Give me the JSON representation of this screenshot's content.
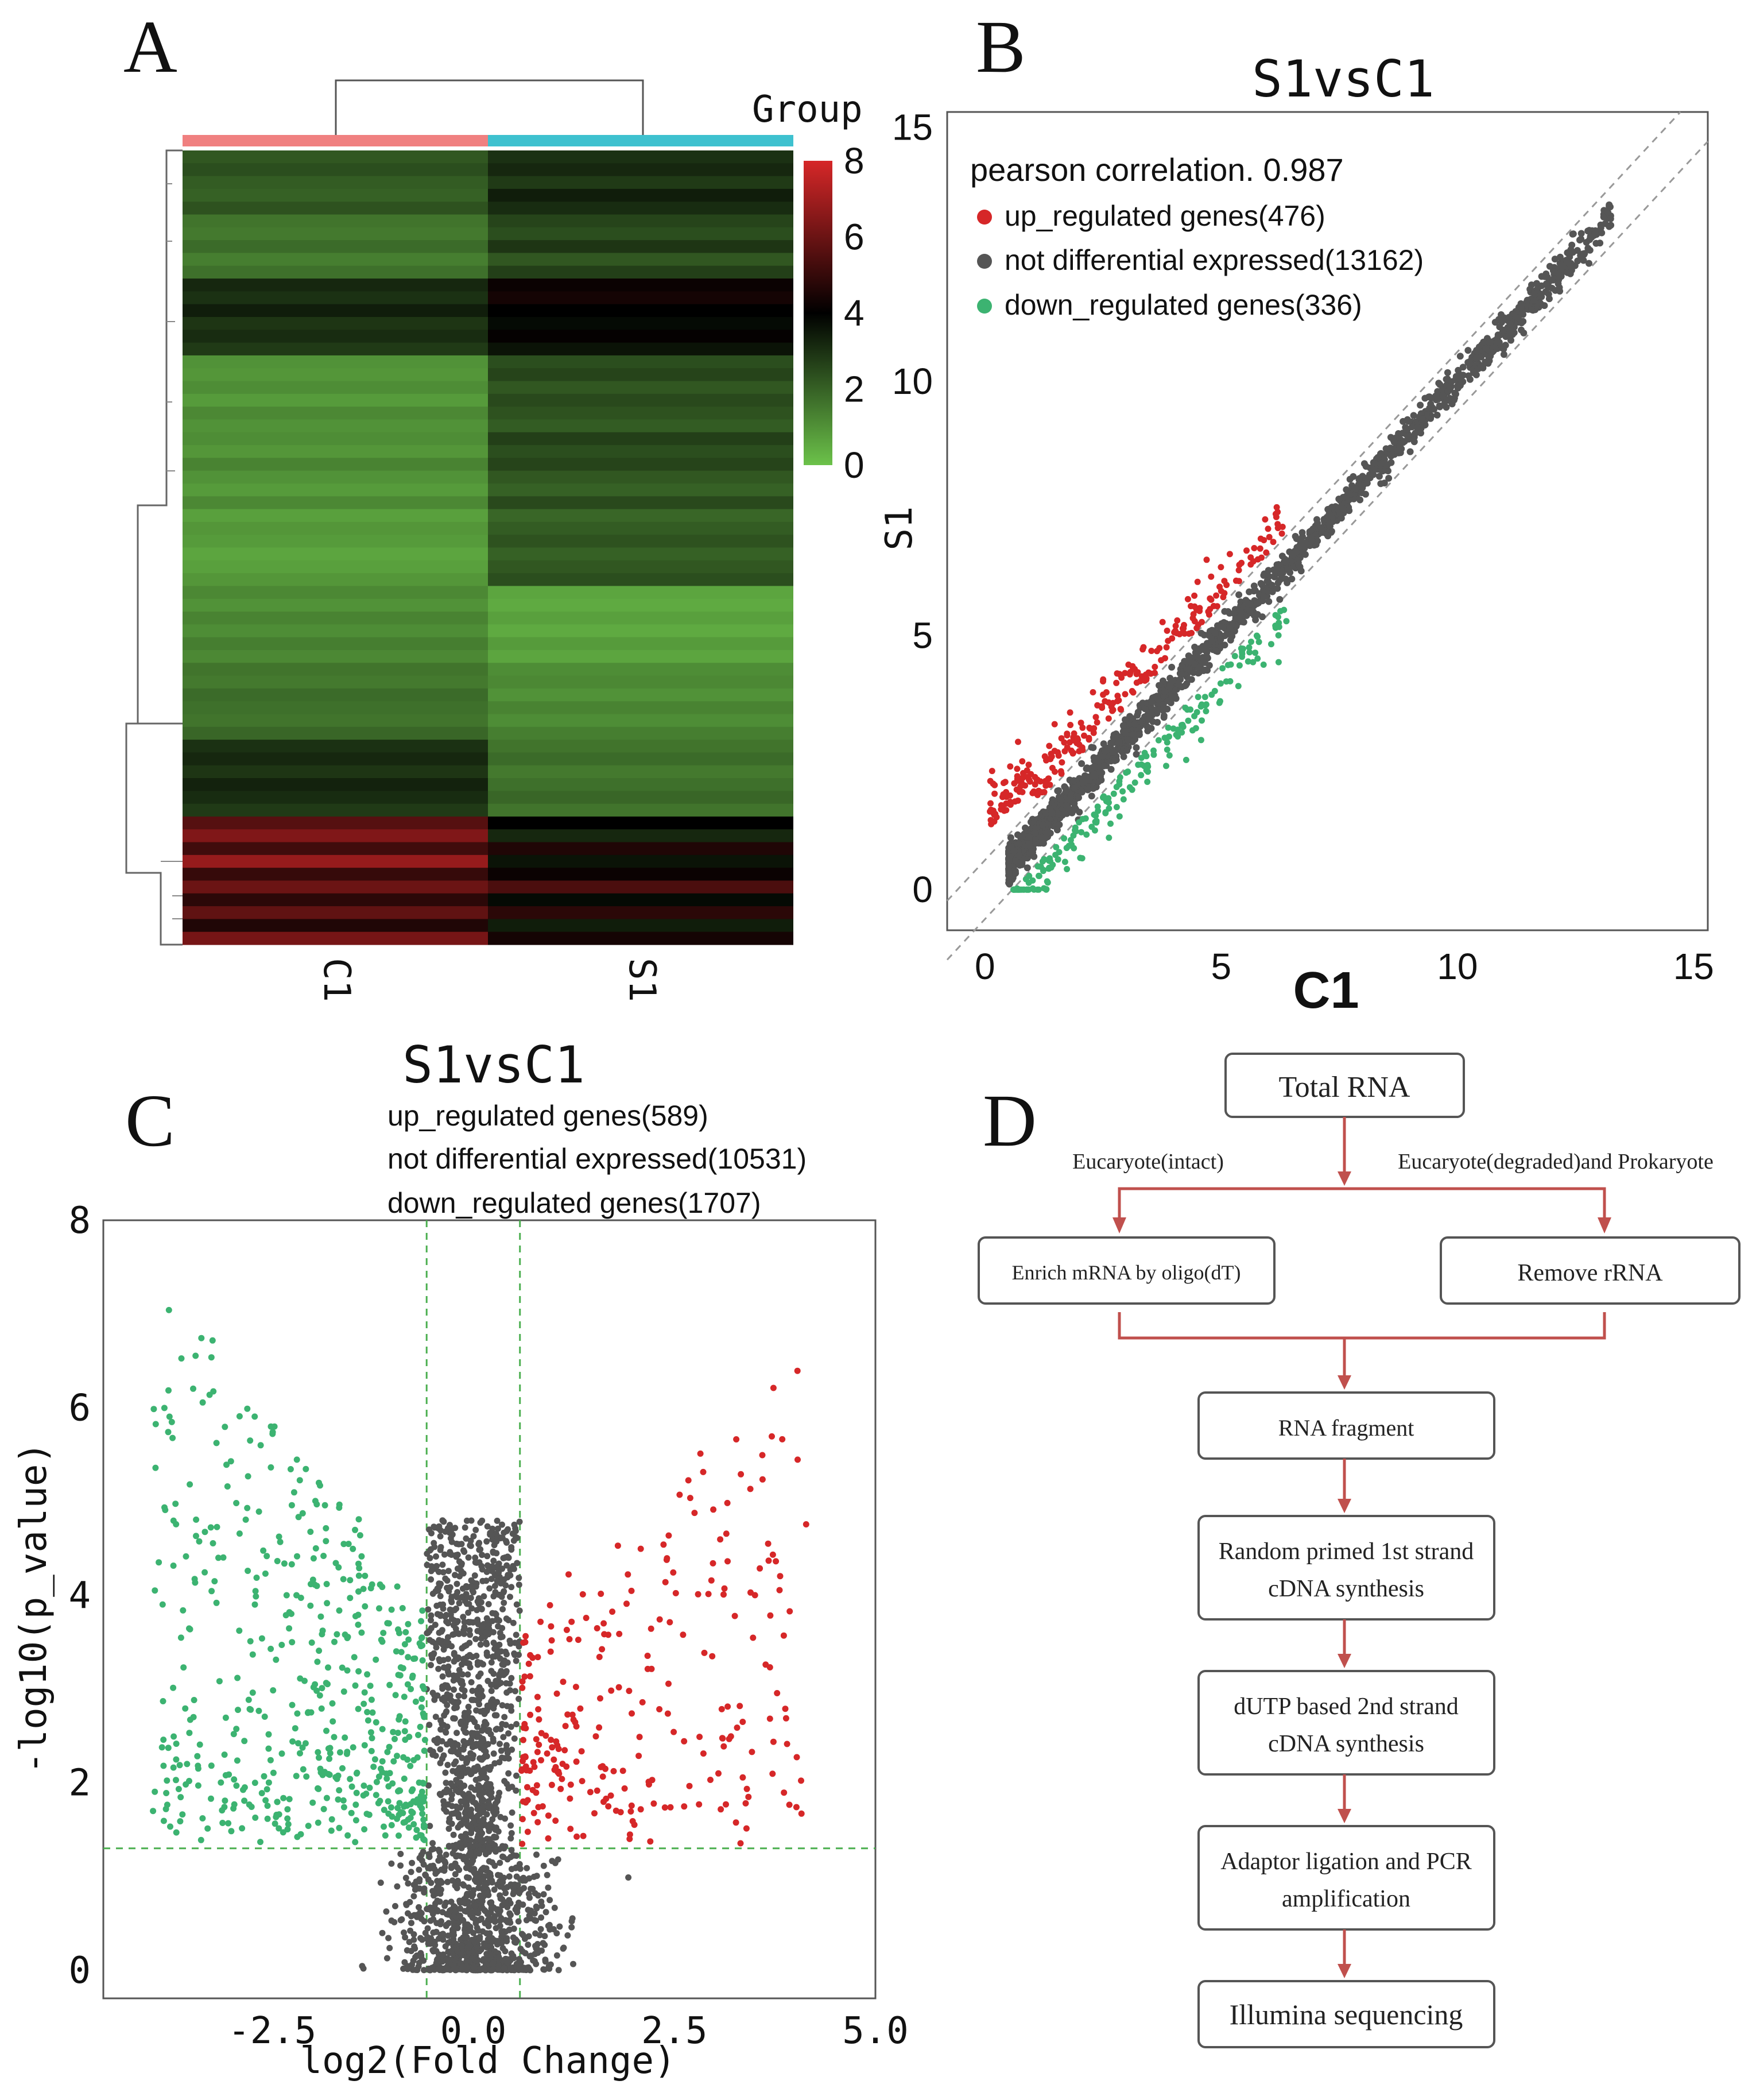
{
  "panels": {
    "a_label": "A",
    "b_label": "B",
    "c_label": "C",
    "d_label": "D"
  },
  "chart_data": [
    {
      "type": "heatmap",
      "columns": [
        "C1",
        "S1"
      ],
      "legend_title": "Group",
      "colorbar_ticks": [
        "8",
        "6",
        "4",
        "2",
        "0"
      ],
      "colorbar_range": [
        0,
        8
      ],
      "colors": {
        "group_c1": "#f08080",
        "group_s1": "#3ec1cf",
        "low": "#6cc24a",
        "mid": "#000000",
        "high": "#d62728"
      },
      "rows": [
        [
          2.2,
          3.0
        ],
        [
          2.4,
          3.2
        ],
        [
          2.1,
          2.8
        ],
        [
          2.0,
          3.4
        ],
        [
          2.3,
          3.1
        ],
        [
          1.6,
          2.6
        ],
        [
          1.5,
          2.4
        ],
        [
          1.8,
          2.9
        ],
        [
          1.4,
          2.2
        ],
        [
          1.7,
          2.7
        ],
        [
          3.2,
          4.2
        ],
        [
          3.0,
          4.4
        ],
        [
          3.4,
          4.0
        ],
        [
          2.9,
          3.8
        ],
        [
          3.1,
          4.1
        ],
        [
          2.8,
          3.6
        ],
        [
          1.0,
          2.4
        ],
        [
          0.9,
          2.6
        ],
        [
          1.1,
          2.2
        ],
        [
          0.8,
          2.5
        ],
        [
          1.2,
          2.3
        ],
        [
          1.0,
          2.1
        ],
        [
          1.1,
          2.7
        ],
        [
          0.9,
          2.4
        ],
        [
          1.3,
          2.6
        ],
        [
          1.0,
          2.2
        ],
        [
          0.8,
          2.0
        ],
        [
          1.2,
          2.5
        ],
        [
          0.7,
          1.9
        ],
        [
          0.9,
          2.1
        ],
        [
          0.8,
          2.3
        ],
        [
          0.6,
          2.0
        ],
        [
          0.7,
          2.2
        ],
        [
          0.9,
          2.4
        ],
        [
          1.2,
          0.6
        ],
        [
          1.0,
          0.5
        ],
        [
          1.3,
          0.7
        ],
        [
          1.1,
          0.5
        ],
        [
          1.4,
          0.8
        ],
        [
          1.2,
          0.6
        ],
        [
          1.6,
          1.1
        ],
        [
          1.5,
          1.2
        ],
        [
          1.8,
          1.0
        ],
        [
          1.7,
          1.3
        ],
        [
          1.6,
          1.1
        ],
        [
          1.9,
          1.4
        ],
        [
          3.0,
          1.6
        ],
        [
          3.2,
          1.8
        ],
        [
          2.9,
          1.5
        ],
        [
          3.3,
          1.7
        ],
        [
          3.1,
          1.9
        ],
        [
          2.8,
          1.6
        ],
        [
          5.6,
          4.0
        ],
        [
          6.4,
          3.2
        ],
        [
          5.2,
          4.6
        ],
        [
          6.8,
          3.6
        ],
        [
          5.0,
          4.2
        ],
        [
          6.0,
          5.4
        ],
        [
          4.8,
          3.8
        ],
        [
          5.8,
          4.8
        ],
        [
          4.6,
          3.4
        ],
        [
          6.2,
          4.4
        ]
      ]
    },
    {
      "type": "scatter",
      "title": "S1vsC1",
      "xlabel": "C1",
      "ylabel": "S1",
      "xlim": [
        -0.8,
        15.3
      ],
      "ylim": [
        -0.8,
        15.3
      ],
      "xticks": [
        0,
        5,
        10,
        15
      ],
      "yticks": [
        0,
        5,
        10,
        15
      ],
      "annotation": "pearson correlation. 0.987",
      "legend": [
        {
          "label": "up_regulated genes(476)",
          "color": "#d62728"
        },
        {
          "label": "not differential expressed(13162)",
          "color": "#555555"
        },
        {
          "label": "down_regulated genes(336)",
          "color": "#3cb371"
        }
      ]
    },
    {
      "type": "scatter",
      "title": "S1vsC1",
      "xlabel": "log2(Fold Change)",
      "ylabel": "-log10(p_value)",
      "xlim": [
        -4.6,
        5.0
      ],
      "ylim": [
        -0.3,
        8.0
      ],
      "xticks": [
        "-2.5",
        "0.0",
        "2.5",
        "5.0"
      ],
      "yticks": [
        "0",
        "2",
        "4",
        "6",
        "8"
      ],
      "thresholds": {
        "fc_left": -0.58,
        "fc_right": 0.58,
        "p": 1.3
      },
      "legend": [
        {
          "label": "up_regulated genes(589)"
        },
        {
          "label": "not differential expressed(10531)"
        },
        {
          "label": "down_regulated genes(1707)"
        }
      ]
    }
  ],
  "flow": {
    "total_rna": "Total RNA",
    "branch_left": "Eucaryote(intact)",
    "branch_right": "Eucaryote(degraded)and Prokaryote",
    "enrich": "Enrich mRNA by oligo(dT)",
    "remove": "Remove rRNA",
    "fragment": "RNA fragment",
    "first_1": "Random primed 1st strand",
    "first_2": "cDNA synthesis",
    "second_1": "dUTP based 2nd strand",
    "second_2": "cDNA  synthesis",
    "adaptor_1": "Adaptor ligation and PCR",
    "adaptor_2": "amplification",
    "sequencing": "Illumina sequencing"
  }
}
